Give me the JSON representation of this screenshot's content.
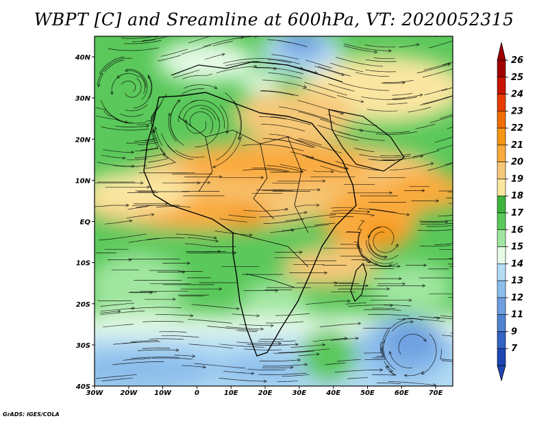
{
  "title": "WBPT [C] and Sreamline at 600hPa, VT: 2020052315",
  "credit": "GrADS: IGES/COLA",
  "map": {
    "lon_range": [
      -30,
      75
    ],
    "lat_range": [
      -40,
      45
    ],
    "x_ticks": [
      {
        "lon": -30,
        "label": "30W"
      },
      {
        "lon": -20,
        "label": "20W"
      },
      {
        "lon": -10,
        "label": "10W"
      },
      {
        "lon": 0,
        "label": "0"
      },
      {
        "lon": 10,
        "label": "10E"
      },
      {
        "lon": 20,
        "label": "20E"
      },
      {
        "lon": 30,
        "label": "30E"
      },
      {
        "lon": 40,
        "label": "40E"
      },
      {
        "lon": 50,
        "label": "50E"
      },
      {
        "lon": 60,
        "label": "60E"
      },
      {
        "lon": 70,
        "label": "70E"
      }
    ],
    "y_ticks": [
      {
        "lat": 40,
        "label": "40N"
      },
      {
        "lat": 30,
        "label": "30N"
      },
      {
        "lat": 20,
        "label": "20N"
      },
      {
        "lat": 10,
        "label": "10N"
      },
      {
        "lat": 0,
        "label": "EQ"
      },
      {
        "lat": -10,
        "label": "10S"
      },
      {
        "lat": -20,
        "label": "20S"
      },
      {
        "lat": -30,
        "label": "30S"
      },
      {
        "lat": -40,
        "label": "40S"
      }
    ]
  },
  "colorbar": {
    "levels": [
      "26",
      "25",
      "24",
      "23",
      "22",
      "21",
      "20",
      "19",
      "18",
      "17",
      "16",
      "15",
      "14",
      "13",
      "12",
      "11",
      "9",
      "7"
    ],
    "colors": [
      "#a00000",
      "#c81400",
      "#e63c00",
      "#f06e00",
      "#f59614",
      "#faaa3c",
      "#f5c878",
      "#fae6a0",
      "#3cb43c",
      "#5ac85a",
      "#a0e6a0",
      "#e6fae6",
      "#b4dcf5",
      "#8cbeeb",
      "#6ea0e1",
      "#5082d2",
      "#3264c3",
      "#1e46b4"
    ],
    "top_arrow_color": "#a00000",
    "bottom_arrow_color": "#1e46b4"
  }
}
